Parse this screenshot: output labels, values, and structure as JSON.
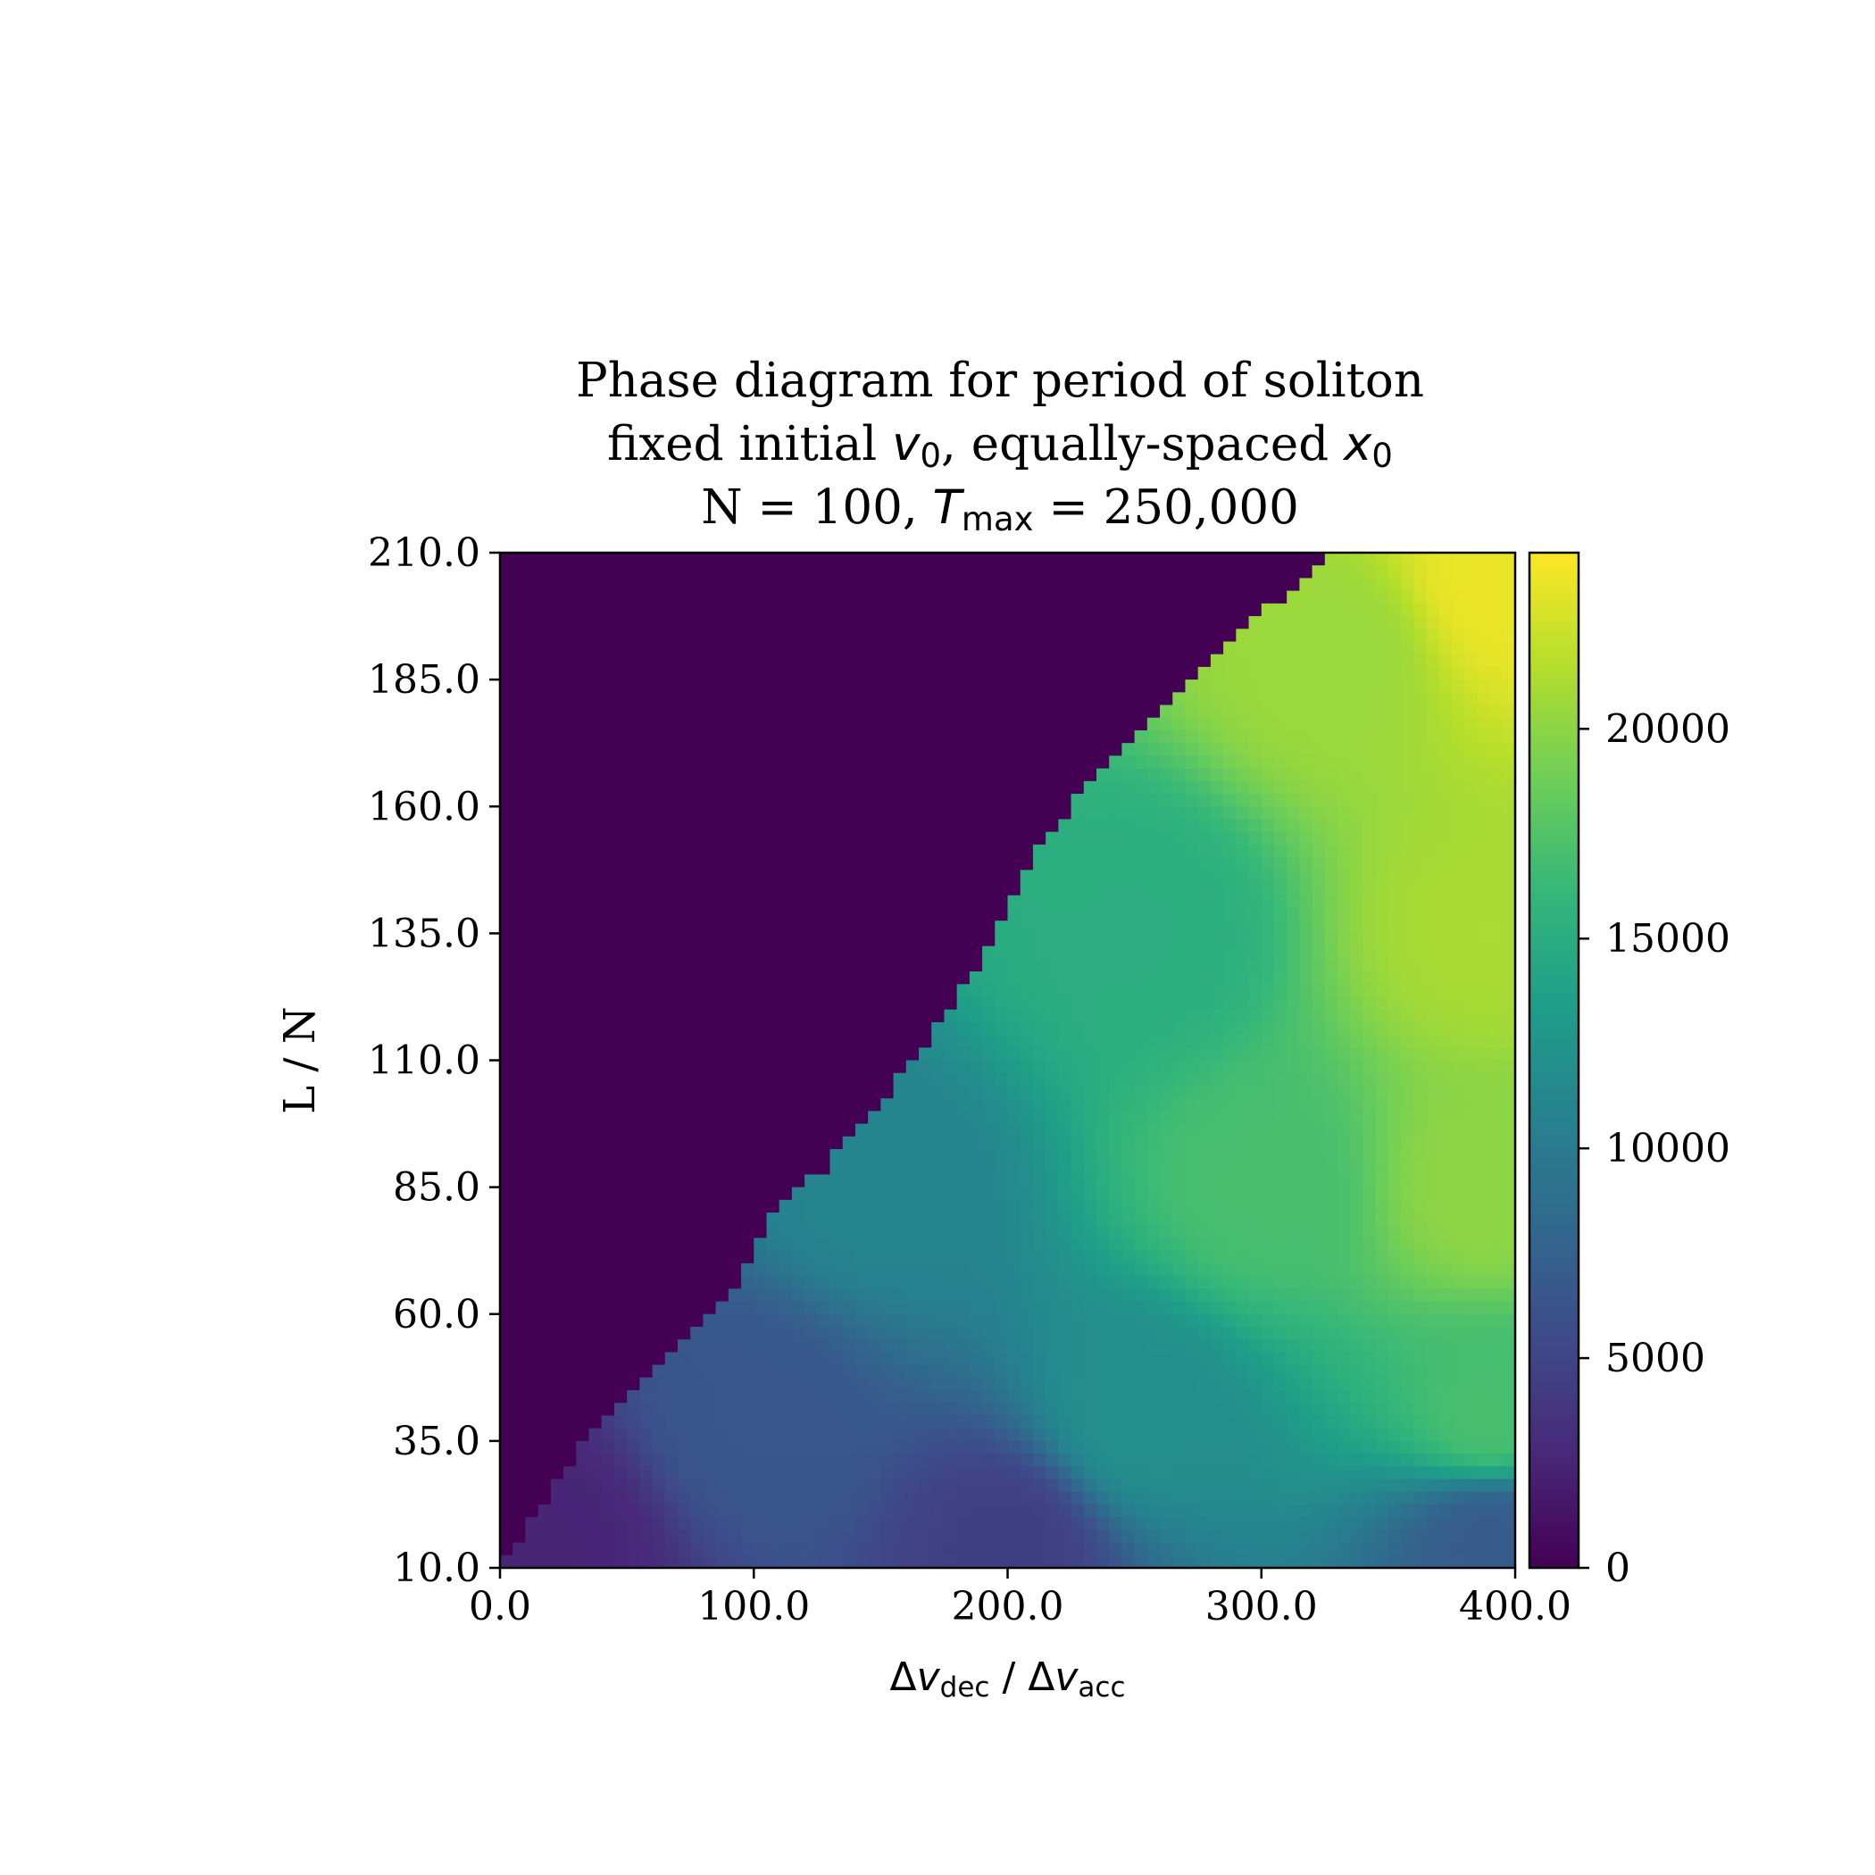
{
  "chart_data": {
    "type": "heatmap",
    "title_lines": [
      {
        "parts": [
          {
            "t": "Phase diagram for period of soliton",
            "style": "serif"
          }
        ]
      },
      {
        "parts": [
          {
            "t": "fixed initial ",
            "style": "serif"
          },
          {
            "t": "v",
            "style": "math-italic"
          },
          {
            "t": "0",
            "style": "math-sub"
          },
          {
            "t": ", equally-spaced ",
            "style": "serif"
          },
          {
            "t": "x",
            "style": "math-italic"
          },
          {
            "t": "0",
            "style": "math-sub"
          }
        ]
      },
      {
        "parts": [
          {
            "t": "N = 100, ",
            "style": "serif"
          },
          {
            "t": "T",
            "style": "math-italic"
          },
          {
            "t": "max",
            "style": "math-sub"
          },
          {
            "t": " = 250,000",
            "style": "serif"
          }
        ]
      }
    ],
    "xlabel_parts": [
      {
        "t": "Δ",
        "style": "math"
      },
      {
        "t": "v",
        "style": "math-italic"
      },
      {
        "t": "dec",
        "style": "math-sub"
      },
      {
        "t": " / ",
        "style": "math"
      },
      {
        "t": "Δ",
        "style": "math"
      },
      {
        "t": "v",
        "style": "math-italic"
      },
      {
        "t": "acc",
        "style": "math-sub"
      }
    ],
    "ylabel": "L / N",
    "xlim": [
      0,
      400
    ],
    "ylim": [
      10,
      210
    ],
    "xticks": [
      0,
      100,
      200,
      300,
      400
    ],
    "xtick_labels": [
      "0.0",
      "100.0",
      "200.0",
      "300.0",
      "400.0"
    ],
    "yticks": [
      10,
      35,
      60,
      85,
      110,
      135,
      160,
      185,
      210
    ],
    "ytick_labels": [
      "10.0",
      "35.0",
      "60.0",
      "85.0",
      "110.0",
      "135.0",
      "160.0",
      "185.0",
      "210.0"
    ],
    "colormap": "viridis",
    "colorbar": {
      "vmin": 0,
      "vmax": 24200,
      "ticks": [
        0,
        5000,
        10000,
        15000,
        20000
      ],
      "tick_labels": [
        "0",
        "5000",
        "10000",
        "15000",
        "20000"
      ]
    },
    "phase_boundary": {
      "description_free": true,
      "x": [
        0,
        40,
        95,
        100,
        130,
        160,
        180,
        195,
        210,
        240,
        255,
        290,
        310,
        330
      ],
      "y": [
        10,
        40,
        65,
        75,
        90,
        108,
        122,
        135,
        150,
        170,
        177,
        195,
        202,
        210
      ]
    },
    "approx_period_at": [
      {
        "x": 20,
        "y": 15,
        "v": 2500
      },
      {
        "x": 200,
        "y": 15,
        "v": 4500
      },
      {
        "x": 390,
        "y": 15,
        "v": 7000
      },
      {
        "x": 100,
        "y": 40,
        "v": 6500
      },
      {
        "x": 250,
        "y": 40,
        "v": 12000
      },
      {
        "x": 390,
        "y": 40,
        "v": 17000
      },
      {
        "x": 150,
        "y": 85,
        "v": 11000
      },
      {
        "x": 300,
        "y": 85,
        "v": 17000
      },
      {
        "x": 390,
        "y": 85,
        "v": 20000
      },
      {
        "x": 250,
        "y": 135,
        "v": 15000
      },
      {
        "x": 390,
        "y": 135,
        "v": 21000
      },
      {
        "x": 330,
        "y": 190,
        "v": 20500
      },
      {
        "x": 395,
        "y": 205,
        "v": 23500
      }
    ]
  }
}
